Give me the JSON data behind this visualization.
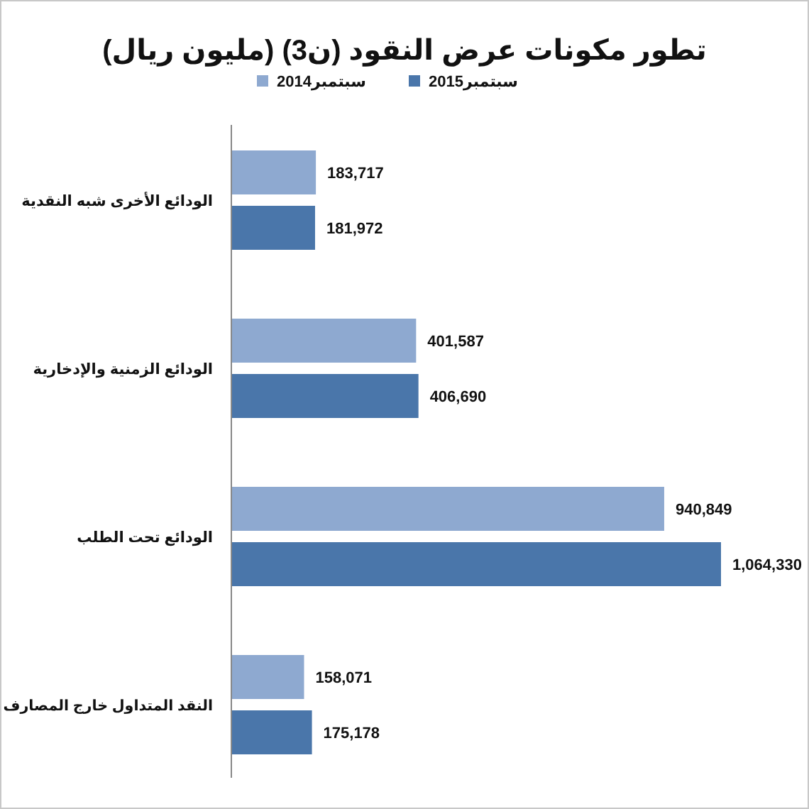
{
  "chart_data": {
    "type": "bar",
    "orientation": "horizontal",
    "title": "تطور مكونات عرض النقود (ن3)  (مليون ريال)",
    "categories": [
      "الودائع الأخرى شبه النقدية",
      "الودائع الزمنية والإدخارية",
      "الودائع تحت الطلب",
      "النقد المتداول خارج المصارف"
    ],
    "series": [
      {
        "name": "سبتمبر2014",
        "color": "#8ea9d0",
        "values": [
          183717,
          401587,
          940849,
          158071
        ],
        "value_labels": [
          "183,717",
          "401,587",
          "940,849",
          "158,071"
        ]
      },
      {
        "name": "سبتمبر2015",
        "color": "#4a76aa",
        "values": [
          181972,
          406690,
          1064330,
          175178
        ],
        "value_labels": [
          "181,972",
          "406,690",
          "1,064,330",
          "175,178"
        ]
      }
    ],
    "legend": "top"
  }
}
